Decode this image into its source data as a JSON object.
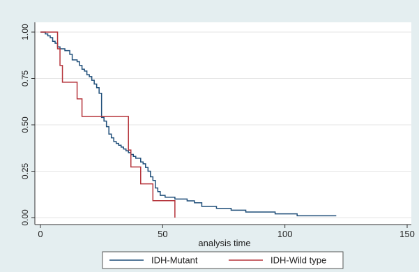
{
  "chart_data": {
    "type": "line",
    "title": "",
    "xlabel": "analysis time",
    "ylabel": "",
    "xlim": [
      0,
      150
    ],
    "ylim": [
      0,
      1
    ],
    "x_ticks": [
      0,
      50,
      100,
      150
    ],
    "x_tick_labels": [
      "0",
      "50",
      "100",
      "150"
    ],
    "y_ticks": [
      0,
      0.25,
      0.5,
      0.75,
      1.0
    ],
    "y_tick_labels": [
      "0.00",
      "0.25",
      "0.50",
      "0.75",
      "1.00"
    ],
    "grid": "horizontal",
    "legend_position": "bottom",
    "series": [
      {
        "name": "IDH-Mutant",
        "color": "#1f4e79",
        "step": true,
        "points": [
          [
            0,
            1.0
          ],
          [
            2,
            0.99
          ],
          [
            3,
            0.98
          ],
          [
            4,
            0.97
          ],
          [
            5,
            0.95
          ],
          [
            6,
            0.94
          ],
          [
            7,
            0.92
          ],
          [
            8,
            0.91
          ],
          [
            10,
            0.9
          ],
          [
            12,
            0.88
          ],
          [
            13,
            0.85
          ],
          [
            15,
            0.84
          ],
          [
            16,
            0.82
          ],
          [
            17,
            0.8
          ],
          [
            18,
            0.79
          ],
          [
            19,
            0.77
          ],
          [
            20,
            0.76
          ],
          [
            21,
            0.74
          ],
          [
            22,
            0.72
          ],
          [
            23,
            0.7
          ],
          [
            24,
            0.67
          ],
          [
            25,
            0.54
          ],
          [
            26,
            0.52
          ],
          [
            27,
            0.49
          ],
          [
            28,
            0.45
          ],
          [
            29,
            0.43
          ],
          [
            30,
            0.41
          ],
          [
            31,
            0.4
          ],
          [
            32,
            0.39
          ],
          [
            33,
            0.38
          ],
          [
            34,
            0.37
          ],
          [
            35,
            0.36
          ],
          [
            36,
            0.35
          ],
          [
            37,
            0.34
          ],
          [
            38,
            0.33
          ],
          [
            39,
            0.32
          ],
          [
            41,
            0.3
          ],
          [
            42,
            0.29
          ],
          [
            43,
            0.27
          ],
          [
            44,
            0.25
          ],
          [
            45,
            0.22
          ],
          [
            46,
            0.2
          ],
          [
            47,
            0.16
          ],
          [
            48,
            0.14
          ],
          [
            49,
            0.12
          ],
          [
            51,
            0.11
          ],
          [
            55,
            0.1
          ],
          [
            60,
            0.09
          ],
          [
            63,
            0.08
          ],
          [
            66,
            0.06
          ],
          [
            72,
            0.05
          ],
          [
            78,
            0.04
          ],
          [
            84,
            0.03
          ],
          [
            96,
            0.02
          ],
          [
            105,
            0.01
          ],
          [
            121,
            0.01
          ]
        ]
      },
      {
        "name": "IDH-Wild type",
        "color": "#b5333a",
        "step": true,
        "points": [
          [
            0,
            1.0
          ],
          [
            6,
            1.0
          ],
          [
            7,
            0.91
          ],
          [
            8,
            0.82
          ],
          [
            9,
            0.73
          ],
          [
            15,
            0.64
          ],
          [
            17,
            0.545
          ],
          [
            36,
            0.364
          ],
          [
            37,
            0.273
          ],
          [
            41,
            0.182
          ],
          [
            46,
            0.091
          ],
          [
            55,
            0.0
          ]
        ]
      }
    ]
  }
}
